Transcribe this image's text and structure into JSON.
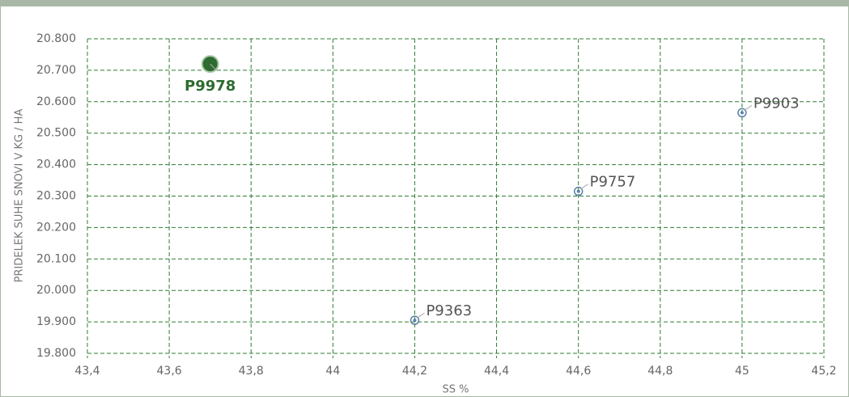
{
  "chart_data": {
    "type": "scatter",
    "xlabel": "SS %",
    "ylabel": "PRIDELEK SUHE SNOVI V KG / HA",
    "x": [
      43.7,
      44.2,
      44.6,
      45.0
    ],
    "values": [
      20720,
      19905,
      20315,
      20565
    ],
    "labels": [
      "P9978",
      "P9363",
      "P9757",
      "P9903"
    ],
    "colors": [
      "#2e6b30",
      "#5b7fa8",
      "#5b7fa8",
      "#5b7fa8"
    ],
    "xlim": [
      43.4,
      45.2
    ],
    "xticks": [
      {
        "value": 43.4,
        "label": "43,4"
      },
      {
        "value": 43.6,
        "label": "43,6"
      },
      {
        "value": 43.8,
        "label": "43,8"
      },
      44,
      {
        "value": 44.2,
        "label": "44,2"
      },
      {
        "value": 44.4,
        "label": "44,4"
      },
      {
        "value": 44.6,
        "label": "44,6"
      },
      {
        "value": 44.8,
        "label": "44,8"
      },
      45,
      {
        "value": 45.2,
        "label": "45,2"
      }
    ],
    "ylim": [
      19800,
      20800
    ],
    "yticks": [
      {
        "value": 19800,
        "label": "19.800"
      },
      {
        "value": 19900,
        "label": "19.900"
      },
      {
        "value": 20000,
        "label": "20.000"
      },
      {
        "value": 20100,
        "label": "20.100"
      },
      {
        "value": 20200,
        "label": "20.200"
      },
      {
        "value": 20300,
        "label": "20.300"
      },
      {
        "value": 20400,
        "label": "20.400"
      },
      {
        "value": 20500,
        "label": "20.500"
      },
      {
        "value": 20600,
        "label": "20.600"
      },
      {
        "value": 20700,
        "label": "20.700"
      },
      {
        "value": 20800,
        "label": "20.800"
      }
    ],
    "grid": true
  }
}
